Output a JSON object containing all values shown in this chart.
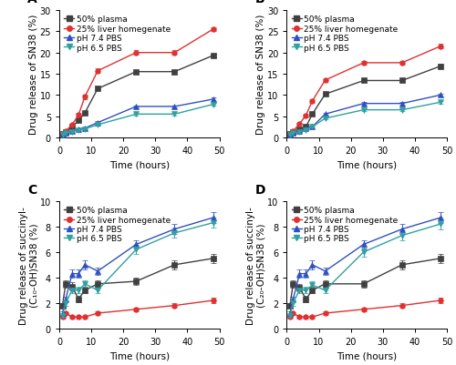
{
  "time_points": [
    1,
    2,
    4,
    6,
    8,
    12,
    24,
    36,
    48
  ],
  "panel_A": {
    "title": "A",
    "ylabel": "Drug release of SN38 (%)",
    "xlabel": "Time (hours)",
    "ylim": [
      0,
      30
    ],
    "yticks": [
      0,
      5,
      10,
      15,
      20,
      25,
      30
    ],
    "xlim": [
      0,
      50
    ],
    "xticks": [
      0,
      10,
      20,
      30,
      40,
      50
    ],
    "series": {
      "plasma": [
        0.8,
        1.2,
        2.5,
        4.0,
        5.8,
        11.5,
        15.5,
        15.5,
        19.3
      ],
      "liver": [
        0.9,
        1.5,
        3.0,
        5.3,
        9.6,
        15.7,
        20.0,
        20.0,
        25.5
      ],
      "ph74": [
        0.7,
        1.0,
        1.5,
        2.0,
        2.2,
        3.5,
        7.3,
        7.3,
        9.0
      ],
      "ph65": [
        0.7,
        1.0,
        1.3,
        1.8,
        2.0,
        3.0,
        5.5,
        5.5,
        7.8
      ]
    },
    "yerr": {
      "plasma": [
        0.15,
        0.15,
        0.2,
        0.25,
        0.3,
        0.4,
        0.4,
        0.4,
        0.5
      ],
      "liver": [
        0.2,
        0.2,
        0.3,
        0.4,
        0.5,
        0.5,
        0.5,
        0.5,
        0.5
      ],
      "ph74": [
        0.1,
        0.1,
        0.15,
        0.15,
        0.2,
        0.25,
        0.3,
        0.3,
        0.35
      ],
      "ph65": [
        0.1,
        0.1,
        0.15,
        0.15,
        0.2,
        0.25,
        0.3,
        0.3,
        0.35
      ]
    }
  },
  "panel_B": {
    "title": "B",
    "ylabel": "Drug release of SN38 (%)",
    "xlabel": "Time (hours)",
    "ylim": [
      0,
      30
    ],
    "yticks": [
      0,
      5,
      10,
      15,
      20,
      25,
      30
    ],
    "xlim": [
      0,
      50
    ],
    "xticks": [
      0,
      10,
      20,
      30,
      40,
      50
    ],
    "series": {
      "plasma": [
        0.8,
        1.2,
        2.0,
        2.5,
        5.5,
        10.2,
        13.4,
        13.4,
        16.8
      ],
      "liver": [
        0.9,
        1.5,
        3.2,
        5.2,
        8.6,
        13.5,
        17.6,
        17.6,
        21.5
      ],
      "ph74": [
        0.7,
        1.0,
        1.5,
        2.2,
        2.5,
        5.5,
        8.0,
        8.0,
        10.0
      ],
      "ph65": [
        0.7,
        1.0,
        1.3,
        1.8,
        2.5,
        4.5,
        6.5,
        6.5,
        8.3
      ]
    },
    "yerr": {
      "plasma": [
        0.15,
        0.15,
        0.2,
        0.25,
        0.3,
        0.4,
        0.4,
        0.4,
        0.5
      ],
      "liver": [
        0.2,
        0.2,
        0.3,
        0.4,
        0.5,
        0.5,
        0.5,
        0.5,
        0.5
      ],
      "ph74": [
        0.1,
        0.1,
        0.15,
        0.15,
        0.2,
        0.25,
        0.3,
        0.3,
        0.35
      ],
      "ph65": [
        0.1,
        0.1,
        0.15,
        0.15,
        0.2,
        0.25,
        0.3,
        0.3,
        0.35
      ]
    }
  },
  "panel_C": {
    "title": "C",
    "ylabel": "Drug release of succinyl-\n(C₁₀-OH)SN38 (%)",
    "xlabel": "Time (hours)",
    "ylim": [
      0,
      10
    ],
    "yticks": [
      0,
      2,
      4,
      6,
      8,
      10
    ],
    "xlim": [
      0,
      50
    ],
    "xticks": [
      0,
      10,
      20,
      30,
      40,
      50
    ],
    "series": {
      "plasma": [
        1.8,
        3.5,
        3.3,
        2.3,
        3.0,
        3.5,
        3.7,
        5.0,
        5.5
      ],
      "liver": [
        0.9,
        1.2,
        0.9,
        0.9,
        0.9,
        1.2,
        1.5,
        1.8,
        2.2
      ],
      "ph74": [
        1.2,
        2.3,
        4.3,
        4.3,
        5.0,
        4.5,
        6.6,
        7.8,
        8.7
      ],
      "ph65": [
        1.0,
        2.0,
        3.0,
        3.0,
        3.5,
        3.0,
        6.2,
        7.5,
        8.3
      ]
    },
    "yerr": {
      "plasma": [
        0.2,
        0.3,
        0.3,
        0.25,
        0.25,
        0.3,
        0.3,
        0.35,
        0.35
      ],
      "liver": [
        0.1,
        0.1,
        0.1,
        0.1,
        0.1,
        0.15,
        0.15,
        0.2,
        0.2
      ],
      "ph74": [
        0.15,
        0.2,
        0.3,
        0.3,
        0.35,
        0.3,
        0.35,
        0.4,
        0.4
      ],
      "ph65": [
        0.15,
        0.2,
        0.25,
        0.25,
        0.3,
        0.25,
        0.35,
        0.4,
        0.4
      ]
    }
  },
  "panel_D": {
    "title": "D",
    "ylabel": "Drug release of succinyl-\n(C₂₀-OH)SN38 (%)",
    "xlabel": "Time (hours)",
    "ylim": [
      0,
      10
    ],
    "yticks": [
      0,
      2,
      4,
      6,
      8,
      10
    ],
    "xlim": [
      0,
      50
    ],
    "xticks": [
      0,
      10,
      20,
      30,
      40,
      50
    ],
    "series": {
      "plasma": [
        1.8,
        3.5,
        3.2,
        2.3,
        3.0,
        3.5,
        3.5,
        5.0,
        5.5
      ],
      "liver": [
        0.9,
        1.2,
        0.9,
        0.9,
        0.9,
        1.2,
        1.5,
        1.8,
        2.2
      ],
      "ph74": [
        1.2,
        2.3,
        4.3,
        4.3,
        5.0,
        4.5,
        6.6,
        7.8,
        8.7
      ],
      "ph65": [
        1.0,
        2.0,
        3.0,
        3.0,
        3.4,
        3.0,
        6.0,
        7.3,
        8.2
      ]
    },
    "yerr": {
      "plasma": [
        0.2,
        0.3,
        0.3,
        0.25,
        0.25,
        0.3,
        0.3,
        0.35,
        0.35
      ],
      "liver": [
        0.1,
        0.1,
        0.1,
        0.1,
        0.1,
        0.15,
        0.15,
        0.2,
        0.2
      ],
      "ph74": [
        0.15,
        0.2,
        0.3,
        0.3,
        0.35,
        0.3,
        0.35,
        0.4,
        0.4
      ],
      "ph65": [
        0.15,
        0.2,
        0.25,
        0.25,
        0.3,
        0.25,
        0.35,
        0.4,
        0.4
      ]
    }
  },
  "colors": {
    "plasma": "#404040",
    "liver": "#e03030",
    "ph74": "#3050c0",
    "ph65": "#30a0a0"
  },
  "markers": {
    "plasma": "s",
    "liver": "o",
    "ph74": "^",
    "ph65": "v"
  },
  "legend_labels": {
    "plasma": "50% plasma",
    "liver": "25% liver homegenate",
    "ph74": "pH 7.4 PBS",
    "ph65": "pH 6.5 PBS"
  },
  "markersize": 4,
  "linewidth": 1.0,
  "fontsize_label": 7.5,
  "fontsize_tick": 7,
  "fontsize_legend": 6.5,
  "fontsize_panel": 10
}
